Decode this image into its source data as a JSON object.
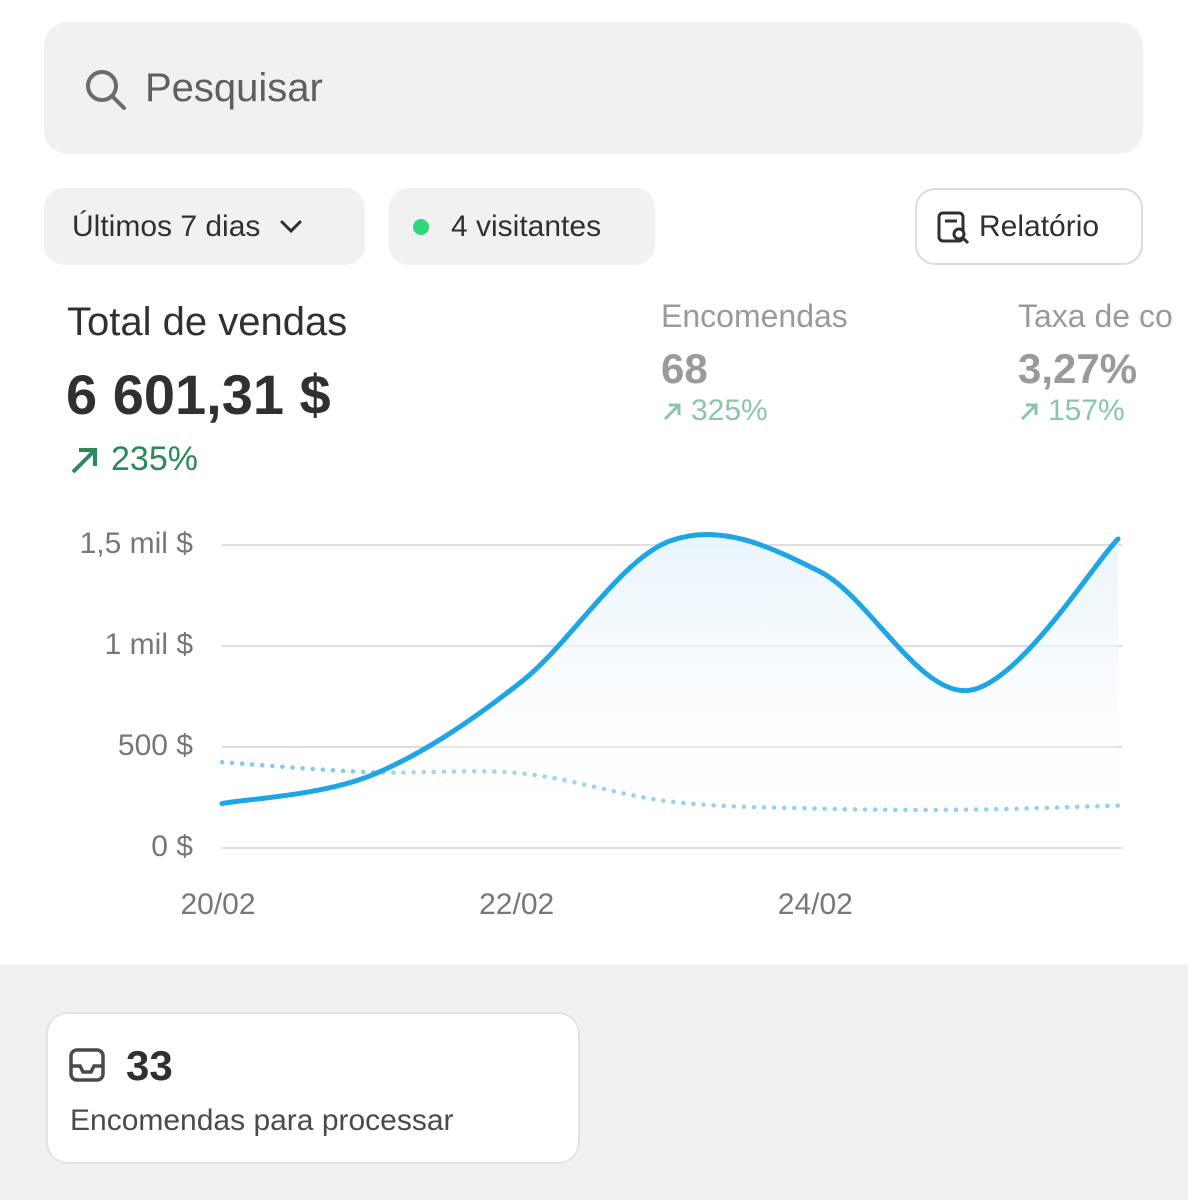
{
  "search": {
    "placeholder": "Pesquisar"
  },
  "filters": {
    "period": "Últimos 7 dias",
    "visitors": "4 visitantes",
    "report": "Relatório"
  },
  "metrics": [
    {
      "label": "Total de vendas",
      "value": "6 601,31 $",
      "change": "235%"
    },
    {
      "label": "Encomendas",
      "value": "68",
      "change": "325%"
    },
    {
      "label": "Taxa de co",
      "value": "3,27%",
      "change": "157%"
    }
  ],
  "chart_data": {
    "type": "line",
    "categories": [
      "20/02",
      null,
      "22/02",
      null,
      "24/02",
      null,
      null
    ],
    "series": [
      {
        "color": "#1ea5e6",
        "style": "solid",
        "values": [
          220,
          360,
          820,
          1520,
          1370,
          780,
          1530
        ]
      },
      {
        "color": "#86c9ea",
        "style": "dotted",
        "values": [
          425,
          375,
          370,
          230,
          195,
          190,
          210
        ]
      }
    ],
    "ylim": [
      0,
      1500
    ],
    "yticks": [
      {
        "value": 0,
        "label": "0 $"
      },
      {
        "value": 500,
        "label": "500 $"
      },
      {
        "value": 1000,
        "label": "1 mil $"
      },
      {
        "value": 1500,
        "label": "1,5 mil $"
      }
    ],
    "grid": true
  },
  "card": {
    "count": "33",
    "label": "Encomendas para processar"
  }
}
